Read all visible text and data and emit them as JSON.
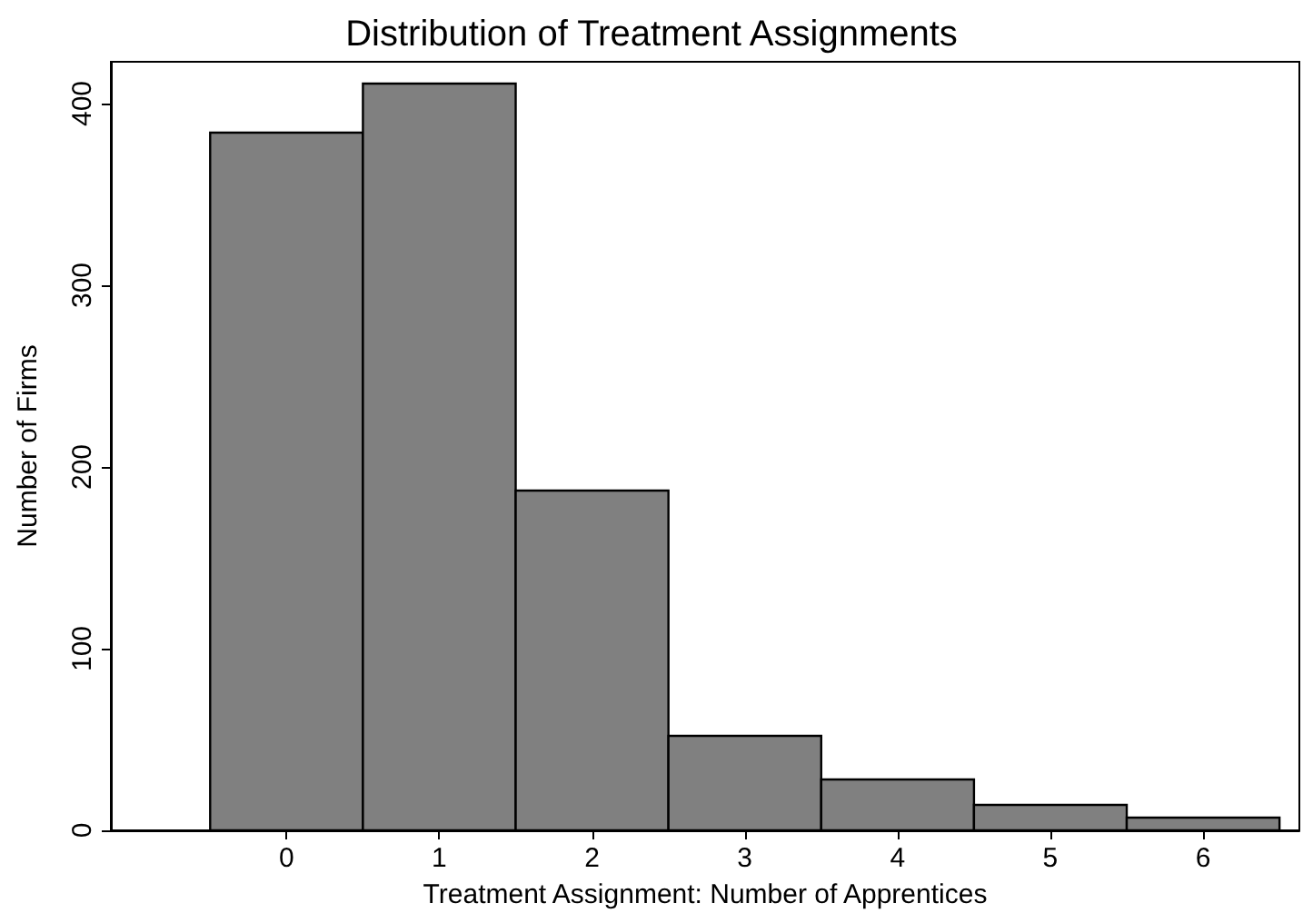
{
  "chart_data": {
    "type": "histogram",
    "title": "Distribution of Treatment Assignments",
    "xlabel": "Treatment Assignment: Number of Apprentices",
    "ylabel": "Number of Firms",
    "bins": [
      -0.5,
      0.5,
      1.5,
      2.5,
      3.5,
      4.5,
      5.5,
      6.5
    ],
    "values": [
      384,
      411,
      187,
      52,
      28,
      14,
      7
    ],
    "color": "#808080",
    "xlim": [
      -1.15,
      6.63
    ],
    "xticks": [
      0,
      1,
      2,
      3,
      4,
      5,
      6
    ],
    "ylim": [
      0,
      423
    ],
    "yticks": [
      0,
      100,
      200,
      300,
      400
    ],
    "grid": false,
    "legend": false
  }
}
